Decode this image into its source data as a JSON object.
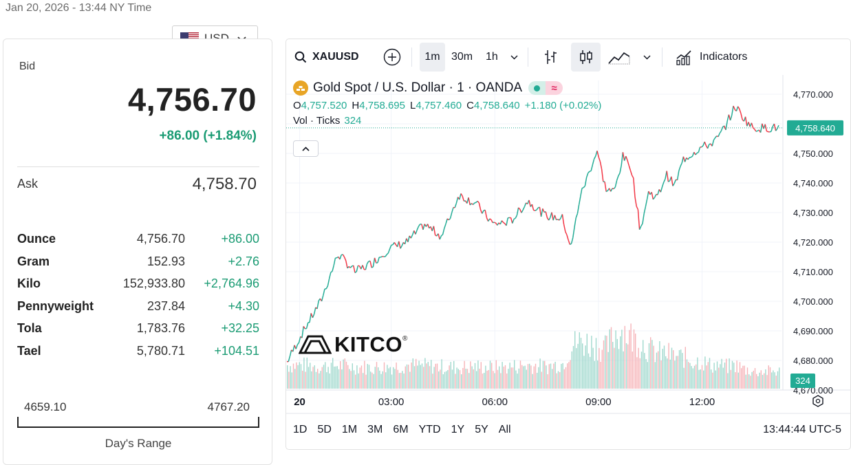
{
  "header": {
    "timestamp": "Jan 20, 2026 - 13:44 NY Time"
  },
  "currency": {
    "selected": "USD",
    "icon": "us-flag-icon"
  },
  "quote": {
    "bid_label": "Bid",
    "bid_price": "4,756.70",
    "bid_change": "+86.00 (+1.84%)",
    "ask_label": "Ask",
    "ask_price": "4,758.70"
  },
  "units": [
    {
      "name": "Ounce",
      "price": "4,756.70",
      "change": "+86.00"
    },
    {
      "name": "Gram",
      "price": "152.93",
      "change": "+2.76"
    },
    {
      "name": "Kilo",
      "price": "152,933.80",
      "change": "+2,764.96"
    },
    {
      "name": "Pennyweight",
      "price": "237.84",
      "change": "+4.30"
    },
    {
      "name": "Tola",
      "price": "1,783.76",
      "change": "+32.25"
    },
    {
      "name": "Tael",
      "price": "5,780.71",
      "change": "+104.51"
    }
  ],
  "day_range": {
    "low": "4659.10",
    "high": "4767.20",
    "label": "Day's Range"
  },
  "chart": {
    "toolbar": {
      "symbol": "XAUUSD",
      "intervals": [
        "1m",
        "30m",
        "1h"
      ],
      "active_interval": "1m",
      "indicators_label": "Indicators"
    },
    "legend": {
      "title": "Gold Spot / U.S. Dollar · 1 · OANDA",
      "o_label": "O",
      "o_value": "4,757.520",
      "h_label": "H",
      "h_value": "4,758.695",
      "l_label": "L",
      "l_value": "4,757.460",
      "c_label": "C",
      "c_value": "4,758.640",
      "change": "+1.180 (+0.02%)",
      "vol_label": "Vol · Ticks",
      "vol_value": "324"
    },
    "price_badge": "4,758.640",
    "volume_badge": "324",
    "range_buttons": [
      "1D",
      "5D",
      "1M",
      "3M",
      "6M",
      "YTD",
      "1Y",
      "5Y",
      "All"
    ],
    "clock": "13:44:44 UTC-5",
    "brand": "KITCO",
    "colors": {
      "up": "#22ab94",
      "down": "#f23645",
      "gold": "#e8a526"
    }
  },
  "chart_data": {
    "type": "line",
    "title": "Gold Spot / U.S. Dollar · 1 · OANDA",
    "y_axis_ticks": [
      "4,770.000",
      "4,760.000",
      "4,750.000",
      "4,740.000",
      "4,730.000",
      "4,720.000",
      "4,710.000",
      "4,700.000",
      "4,690.000",
      "4,680.000",
      "4,670.000"
    ],
    "x_axis_ticks": [
      "20",
      "03:00",
      "06:00",
      "09:00",
      "12:00"
    ],
    "ylim": [
      4668,
      4772
    ],
    "x_hours": [
      0,
      0.5,
      1,
      1.5,
      2,
      2.5,
      3,
      3.5,
      4,
      4.5,
      5,
      5.5,
      6,
      6.5,
      7,
      7.5,
      8,
      8.25,
      8.5,
      9,
      9.25,
      9.5,
      9.75,
      10,
      10.25,
      10.5,
      10.75,
      11,
      11.25,
      11.5,
      11.75,
      12,
      12.25,
      12.5,
      12.75,
      13,
      13.25,
      13.5,
      13.75
    ],
    "price": [
      4679,
      4690,
      4700,
      4716,
      4710,
      4713,
      4718,
      4720,
      4726,
      4722,
      4736,
      4733,
      4726,
      4727,
      4734,
      4729,
      4728,
      4718,
      4735,
      4751,
      4738,
      4737,
      4749,
      4745,
      4724,
      4737,
      4735,
      4743,
      4739,
      4748,
      4750,
      4752,
      4753,
      4755,
      4760,
      4766,
      4762,
      4758.64,
      4758.64
    ],
    "volume_relative": [
      0.3,
      0.3,
      0.28,
      0.3,
      0.28,
      0.27,
      0.28,
      0.3,
      0.29,
      0.28,
      0.27,
      0.28,
      0.27,
      0.28,
      0.3,
      0.28,
      0.32,
      0.55,
      0.6,
      0.55,
      0.5,
      0.7,
      0.75,
      0.65,
      0.6,
      0.5,
      0.45,
      0.45,
      0.4,
      0.4,
      0.35,
      0.35,
      0.3,
      0.3,
      0.28,
      0.3,
      0.25,
      0.22,
      0.22
    ],
    "last_price": 4758.64,
    "last_volume": 324
  }
}
